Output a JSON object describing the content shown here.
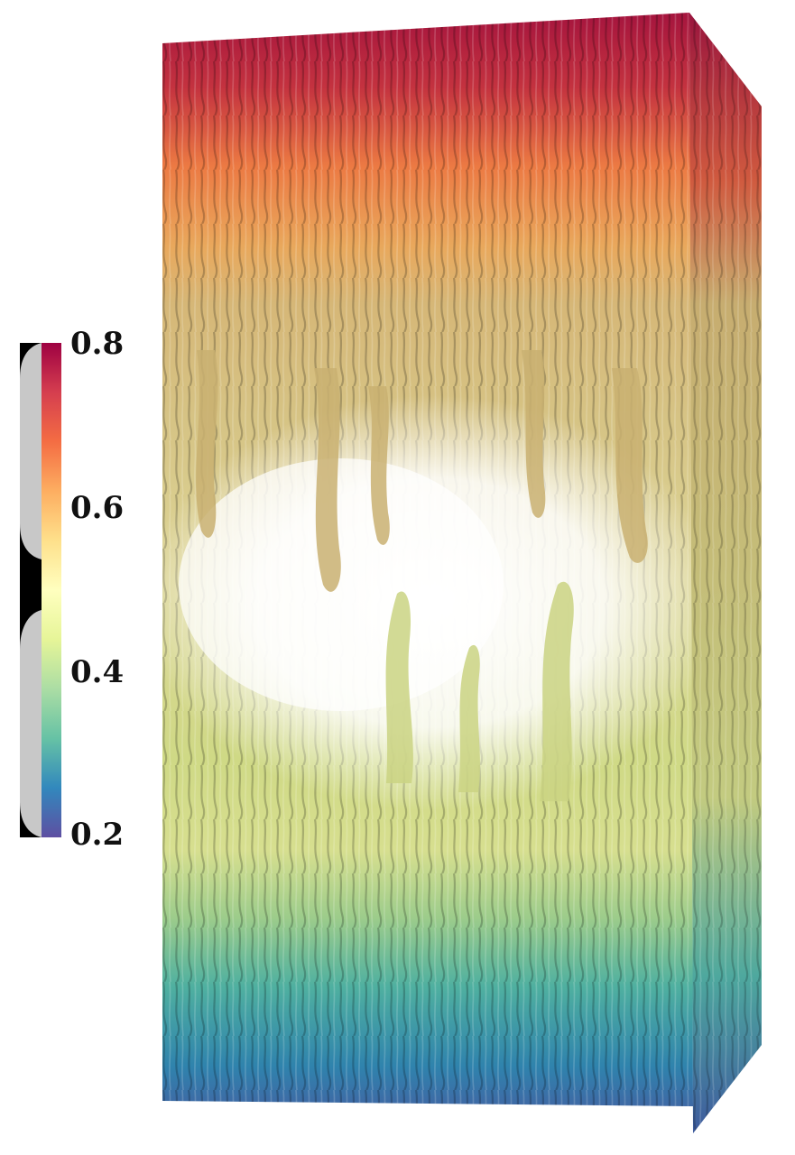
{
  "colorbar": {
    "ticks": [
      {
        "label": "0.8",
        "value": 0.8
      },
      {
        "label": "0.6",
        "value": 0.6
      },
      {
        "label": "0.4",
        "value": 0.4
      },
      {
        "label": "0.2",
        "value": 0.2
      }
    ],
    "range": [
      0.2,
      0.8
    ],
    "colormap": [
      "#5e4fa2",
      "#3288bd",
      "#66c2a5",
      "#abdda4",
      "#e6f598",
      "#ffffbf",
      "#fee08b",
      "#fdae61",
      "#f46d43",
      "#d53e4f",
      "#9e0142"
    ]
  },
  "scene": {
    "subject": "volume-rendered-turbulent-mixing-column",
    "palette": {
      "top": "#b3173f",
      "upper": "#ec7a43",
      "upper_mid": "#e7c77c",
      "mid": "#d9d48a",
      "lower_mid": "#d4df8e",
      "lower": "#4fb39f",
      "bottom": "#3b5fa9"
    }
  }
}
